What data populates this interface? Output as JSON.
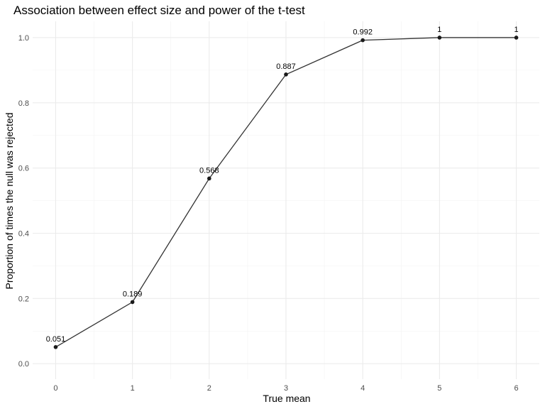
{
  "chart_data": {
    "type": "line",
    "title": "Association between effect size and power of the t-test",
    "xlabel": "True mean",
    "ylabel": "Proportion of times the null was rejected",
    "x": [
      0,
      1,
      2,
      3,
      4,
      5,
      6
    ],
    "y": [
      0.051,
      0.189,
      0.568,
      0.887,
      0.992,
      1,
      1
    ],
    "data_labels": [
      "0.051",
      "0.189",
      "0.568",
      "0.887",
      "0.992",
      "1",
      "1"
    ],
    "xlim": [
      -0.3,
      6.3
    ],
    "ylim": [
      -0.0475,
      1.05
    ],
    "x_ticks": [
      0,
      1,
      2,
      3,
      4,
      5,
      6
    ],
    "x_tick_labels": [
      "0",
      "1",
      "2",
      "3",
      "4",
      "5",
      "6"
    ],
    "y_ticks": [
      0.0,
      0.2,
      0.4,
      0.6,
      0.8,
      1.0
    ],
    "y_tick_labels": [
      "0.0",
      "0.2",
      "0.4",
      "0.6",
      "0.8",
      "1.0"
    ],
    "grid": true,
    "legend": "none",
    "line_color": "#333333",
    "point_color": "#1a1a1a"
  }
}
